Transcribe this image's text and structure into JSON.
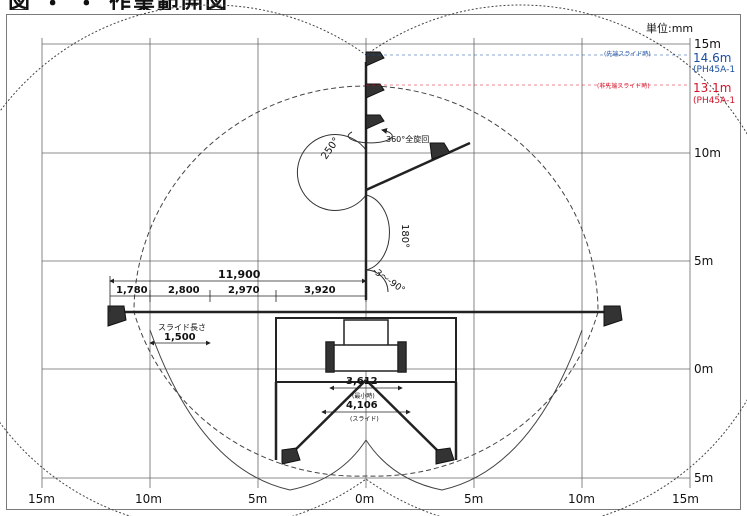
{
  "title": "図 ・ ・ 作業範囲図",
  "unit": "単位:mm",
  "x_axis_labels": [
    "15m",
    "10m",
    "5m",
    "0m",
    "5m",
    "10m",
    "15m"
  ],
  "y_axis_labels": [
    "15m",
    "10m",
    "5m",
    "0m",
    "5m"
  ],
  "height_annotations": [
    {
      "value": "14.6m",
      "model": "(PH45A-1",
      "label": "(先端スライド時)",
      "color": "#1a4fa0"
    },
    {
      "value": "13.1m",
      "model": "(PH45A-1",
      "label": "(非先端スライド時)",
      "color": "#d4142a"
    }
  ],
  "angles": {
    "rotation": "360°全旋回",
    "boom_swing": "250°",
    "boom_tilt": "180°",
    "lower": "-3～-90°"
  },
  "dimensions": {
    "total": "11,900",
    "segments": [
      "1,780",
      "2,800",
      "2,970",
      "3,920"
    ],
    "slide_label": "スライド長さ",
    "slide": "1,500",
    "outrigger_narrow": "3,612",
    "outrigger_narrow_sub": "(最小時)",
    "outrigger_wide": "4,106",
    "outrigger_wide_sub": "(スライド)"
  },
  "colors": {
    "grid": "#666666",
    "range_line": "#555555",
    "boom": "#222222",
    "blue": "#1a4fa0",
    "red": "#d4142a"
  }
}
